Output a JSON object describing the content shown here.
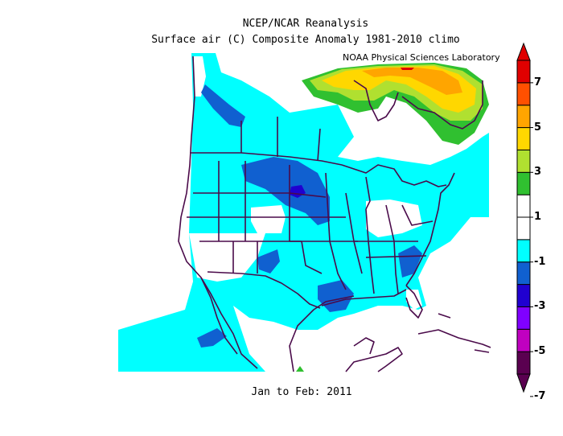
{
  "header": {
    "title": "NCEP/NCAR Reanalysis",
    "subtitle": "Surface air (C) Composite Anomaly 1981-2010 climo",
    "credit": "NOAA Physical Sciences Laboratory"
  },
  "footer": {
    "period": "Jan to Feb: 2011"
  },
  "colorbar": {
    "labels": [
      "7",
      "5",
      "3",
      "1",
      "-1",
      "-3",
      "-5",
      "-7"
    ],
    "bins": [
      {
        "color": "#5a0050"
      },
      {
        "color": "#c000c0"
      },
      {
        "color": "#8000ff"
      },
      {
        "color": "#2000d0"
      },
      {
        "color": "#1060d0"
      },
      {
        "color": "#00ffff"
      },
      {
        "color": "#ffffff"
      },
      {
        "color": "#ffffff"
      },
      {
        "color": "#30c030"
      },
      {
        "color": "#b0e030"
      },
      {
        "color": "#ffd700"
      },
      {
        "color": "#ffa500"
      },
      {
        "color": "#ff5000"
      },
      {
        "color": "#e00000"
      }
    ]
  },
  "palette": {
    "cyan": "#00ffff",
    "blue": "#1060d0",
    "dark_blue": "#2000d0",
    "green": "#30c030",
    "lime": "#b0e030",
    "yellow": "#ffd700",
    "orange": "#ffa500",
    "red": "#e00000",
    "boundaries": "#4a0a4a"
  }
}
